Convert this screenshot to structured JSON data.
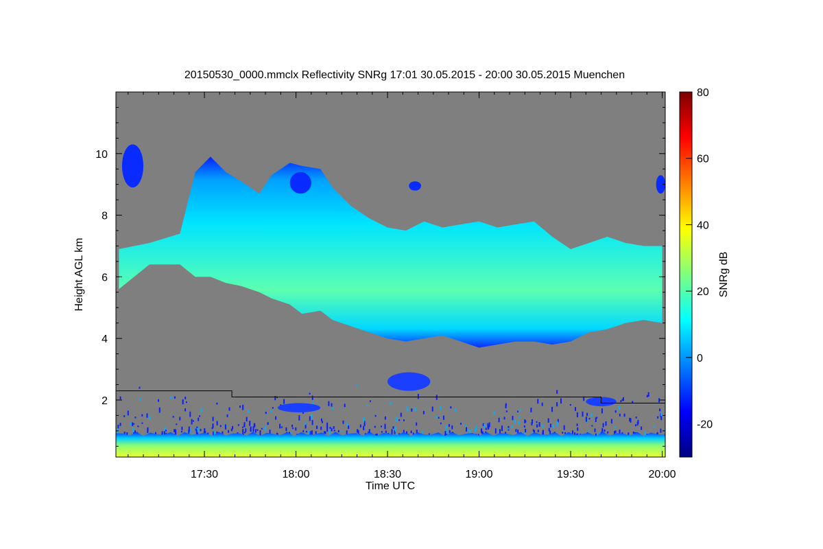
{
  "chart_data": {
    "type": "heatmap",
    "title": "20150530_0000.mmclx Reflectivity SNRg   17:01 30.05.2015 - 20:00 30.05.2015 Muenchen",
    "xlabel": "Time UTC",
    "ylabel": "Height AGL km",
    "x_range_minutes_utc": [
      1021,
      1201
    ],
    "x_ticks": [
      {
        "value": 1050,
        "label": "17:30"
      },
      {
        "value": 1080,
        "label": "18:00"
      },
      {
        "value": 1110,
        "label": "18:30"
      },
      {
        "value": 1140,
        "label": "19:00"
      },
      {
        "value": 1170,
        "label": "19:30"
      },
      {
        "value": 1200,
        "label": "20:00"
      }
    ],
    "ylim": [
      0.15,
      12.0
    ],
    "y_ticks": [
      2,
      4,
      6,
      8,
      10
    ],
    "colorbar": {
      "label": "SNRg dB",
      "range": [
        -30,
        80
      ],
      "ticks": [
        -20,
        0,
        20,
        40,
        60,
        80
      ],
      "colors": [
        "#00007f",
        "#0000ff",
        "#007fff",
        "#00ffff",
        "#7fff7f",
        "#ffff00",
        "#ff7f00",
        "#ff0000",
        "#7f0000"
      ]
    },
    "background_color": "#7f7f7f",
    "cloud_layer": {
      "time": [
        1022,
        1032,
        1042,
        1047,
        1052,
        1057,
        1062,
        1068,
        1072,
        1078,
        1082,
        1088,
        1092,
        1098,
        1104,
        1110,
        1116,
        1122,
        1128,
        1134,
        1140,
        1146,
        1152,
        1158,
        1164,
        1170,
        1176,
        1182,
        1188,
        1194,
        1200
      ],
      "base_km": [
        5.6,
        6.4,
        6.4,
        6.0,
        6.0,
        5.8,
        5.7,
        5.5,
        5.3,
        5.1,
        4.8,
        4.9,
        4.6,
        4.4,
        4.2,
        4.0,
        3.9,
        4.0,
        4.1,
        3.9,
        3.7,
        3.8,
        3.9,
        3.9,
        3.8,
        3.9,
        4.2,
        4.3,
        4.5,
        4.6,
        4.5
      ],
      "top_km": [
        6.9,
        7.1,
        7.4,
        9.4,
        9.9,
        9.4,
        9.1,
        8.7,
        9.3,
        9.7,
        9.6,
        9.5,
        8.9,
        8.3,
        7.9,
        7.6,
        7.5,
        7.8,
        7.6,
        7.7,
        7.8,
        7.6,
        7.7,
        7.8,
        7.3,
        6.9,
        7.1,
        7.3,
        7.1,
        7.0,
        7.0
      ],
      "peak_snr_db": 25
    },
    "upper_patches": [
      {
        "time": [
          1023,
          1030
        ],
        "base_km": 8.9,
        "top_km": 10.3
      },
      {
        "time": [
          1078,
          1085
        ],
        "base_km": 8.7,
        "top_km": 9.4
      },
      {
        "time": [
          1117,
          1121
        ],
        "base_km": 8.8,
        "top_km": 9.1
      },
      {
        "time": [
          1198,
          1201
        ],
        "base_km": 8.7,
        "top_km": 9.3
      }
    ],
    "boundary_layer": {
      "base_km": 0.15,
      "top_km": 0.9,
      "snr_db": 35
    },
    "mid_echoes": [
      {
        "time": [
          1110,
          1124
        ],
        "base_km": 2.3,
        "top_km": 2.9
      },
      {
        "time": [
          1074,
          1088
        ],
        "base_km": 1.6,
        "top_km": 1.9
      },
      {
        "time": [
          1175,
          1185
        ],
        "base_km": 1.8,
        "top_km": 2.1
      }
    ],
    "line_trace": {
      "time": [
        1021,
        1059,
        1059,
        1180,
        1180,
        1201
      ],
      "height_km": [
        2.3,
        2.3,
        2.1,
        2.1,
        1.9,
        1.9
      ]
    }
  }
}
